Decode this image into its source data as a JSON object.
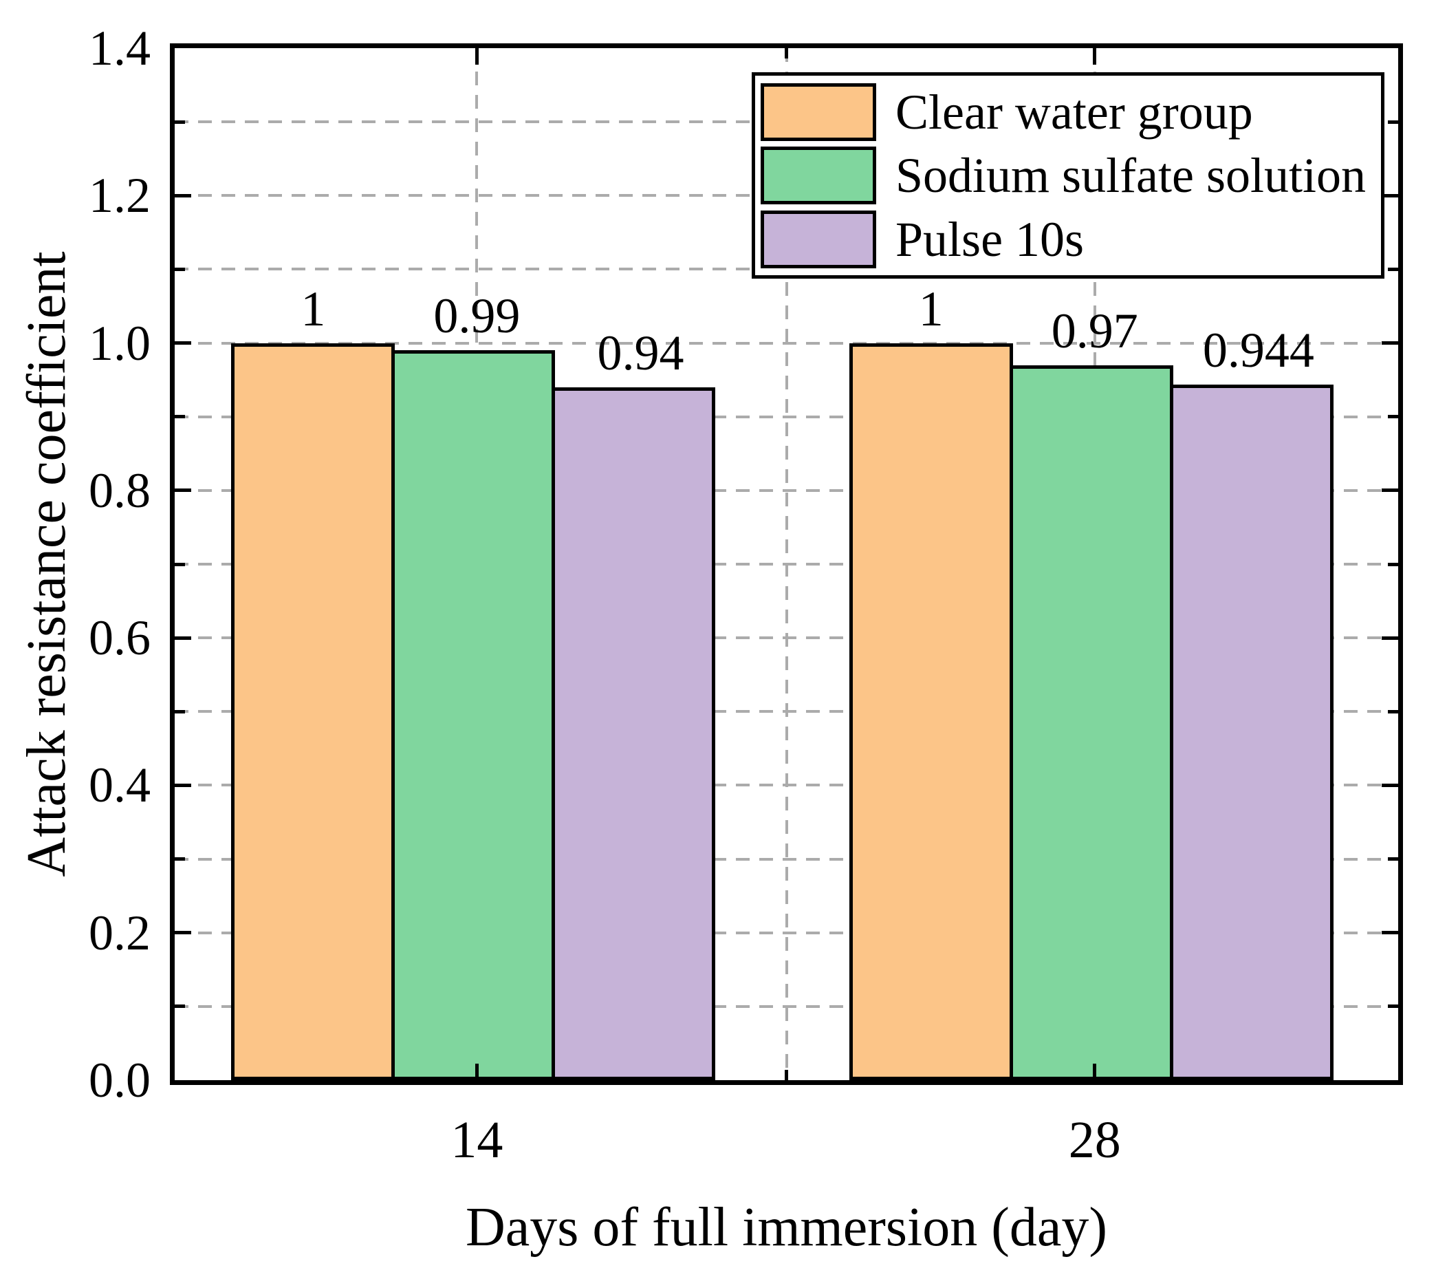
{
  "chart_data": {
    "type": "bar",
    "title": "",
    "xlabel": "Days of full immersion (day)",
    "ylabel": "Attack resistance coefficient",
    "categories": [
      "14",
      "28"
    ],
    "series": [
      {
        "name": "Clear water group",
        "color": "#FCC588",
        "values": [
          1,
          1
        ],
        "value_labels": [
          "1",
          "1"
        ]
      },
      {
        "name": "Sodium sulfate solution",
        "color": "#80D69E",
        "values": [
          0.99,
          0.97
        ],
        "value_labels": [
          "0.99",
          "0.97"
        ]
      },
      {
        "name": "Pulse 10s",
        "color": "#C6B3D8",
        "values": [
          0.94,
          0.944
        ],
        "value_labels": [
          "0.94",
          "0.944"
        ]
      }
    ],
    "ylim": [
      0,
      1.4
    ],
    "yticks": {
      "major_values": [
        0.0,
        0.2,
        0.4,
        0.6,
        0.8,
        1.0,
        1.2,
        1.4
      ],
      "major_labels": [
        "0.0",
        "0.2",
        "0.4",
        "0.6",
        "0.8",
        "1.0",
        "1.2",
        "1.4"
      ],
      "minor_values": [
        0.1,
        0.3,
        0.5,
        0.7,
        0.9,
        1.1,
        1.3
      ]
    },
    "grid": {
      "show": true,
      "style": "dashed",
      "color": "#ababab",
      "horizontal_step": 0.1,
      "vertical_major_at_category_centers": true,
      "vertical_minor_at_group_midpoint": true
    },
    "legend": {
      "position": "upper right inside plot",
      "border_color": "#000000",
      "background": "#ffffff"
    },
    "bar_edge_color": "#000000",
    "axes_color": "#000000"
  }
}
